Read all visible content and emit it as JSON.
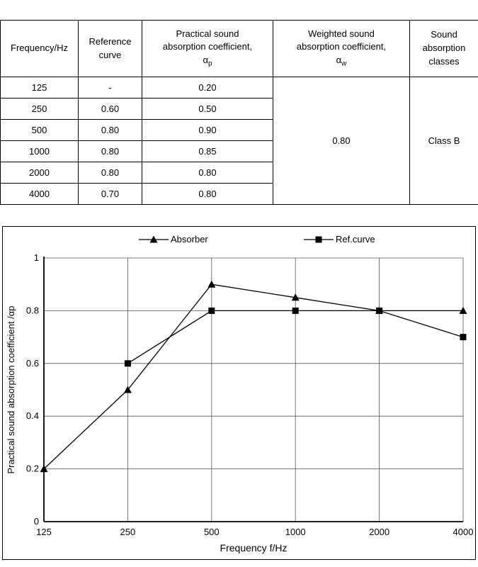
{
  "table": {
    "headers": [
      {
        "lines": [
          "Frequency/Hz"
        ]
      },
      {
        "lines": [
          "Reference",
          "curve"
        ]
      },
      {
        "lines": [
          "Practical sound",
          "absorption coefficient,"
        ],
        "symbol": "α",
        "symbol_sub": "p"
      },
      {
        "lines": [
          "Weighted sound",
          "absorption coefficient,"
        ],
        "symbol": "α",
        "symbol_sub": "w"
      },
      {
        "lines": [
          "Sound",
          "absorption",
          "classes"
        ]
      }
    ],
    "rows": [
      {
        "frequency": "125",
        "reference": "-",
        "practical": "0.20"
      },
      {
        "frequency": "250",
        "reference": "0.60",
        "practical": "0.50"
      },
      {
        "frequency": "500",
        "reference": "0.80",
        "practical": "0.90"
      },
      {
        "frequency": "1000",
        "reference": "0.80",
        "practical": "0.85"
      },
      {
        "frequency": "2000",
        "reference": "0.80",
        "practical": "0.80"
      },
      {
        "frequency": "4000",
        "reference": "0.70",
        "practical": "0.80"
      }
    ],
    "weighted_value": "0.80",
    "class_value": "Class B"
  },
  "chart_data": {
    "type": "line",
    "categories": [
      "125",
      "250",
      "500",
      "1000",
      "2000",
      "4000"
    ],
    "series": [
      {
        "name": "Absorber",
        "marker": "triangle",
        "color": "#000000",
        "values": [
          0.2,
          0.5,
          0.9,
          0.85,
          0.8,
          0.8
        ]
      },
      {
        "name": "Ref.curve",
        "marker": "square",
        "color": "#000000",
        "values": [
          null,
          0.6,
          0.8,
          0.8,
          0.8,
          0.7
        ]
      }
    ],
    "title": "",
    "xlabel": "Frequency  f/Hz",
    "ylabel": "Practical sound absorption coefficient /αp",
    "ylim": [
      0,
      1
    ],
    "yticks": [
      0,
      0.2,
      0.4,
      0.6,
      0.8,
      1
    ],
    "grid": true,
    "legend_position": "top"
  }
}
